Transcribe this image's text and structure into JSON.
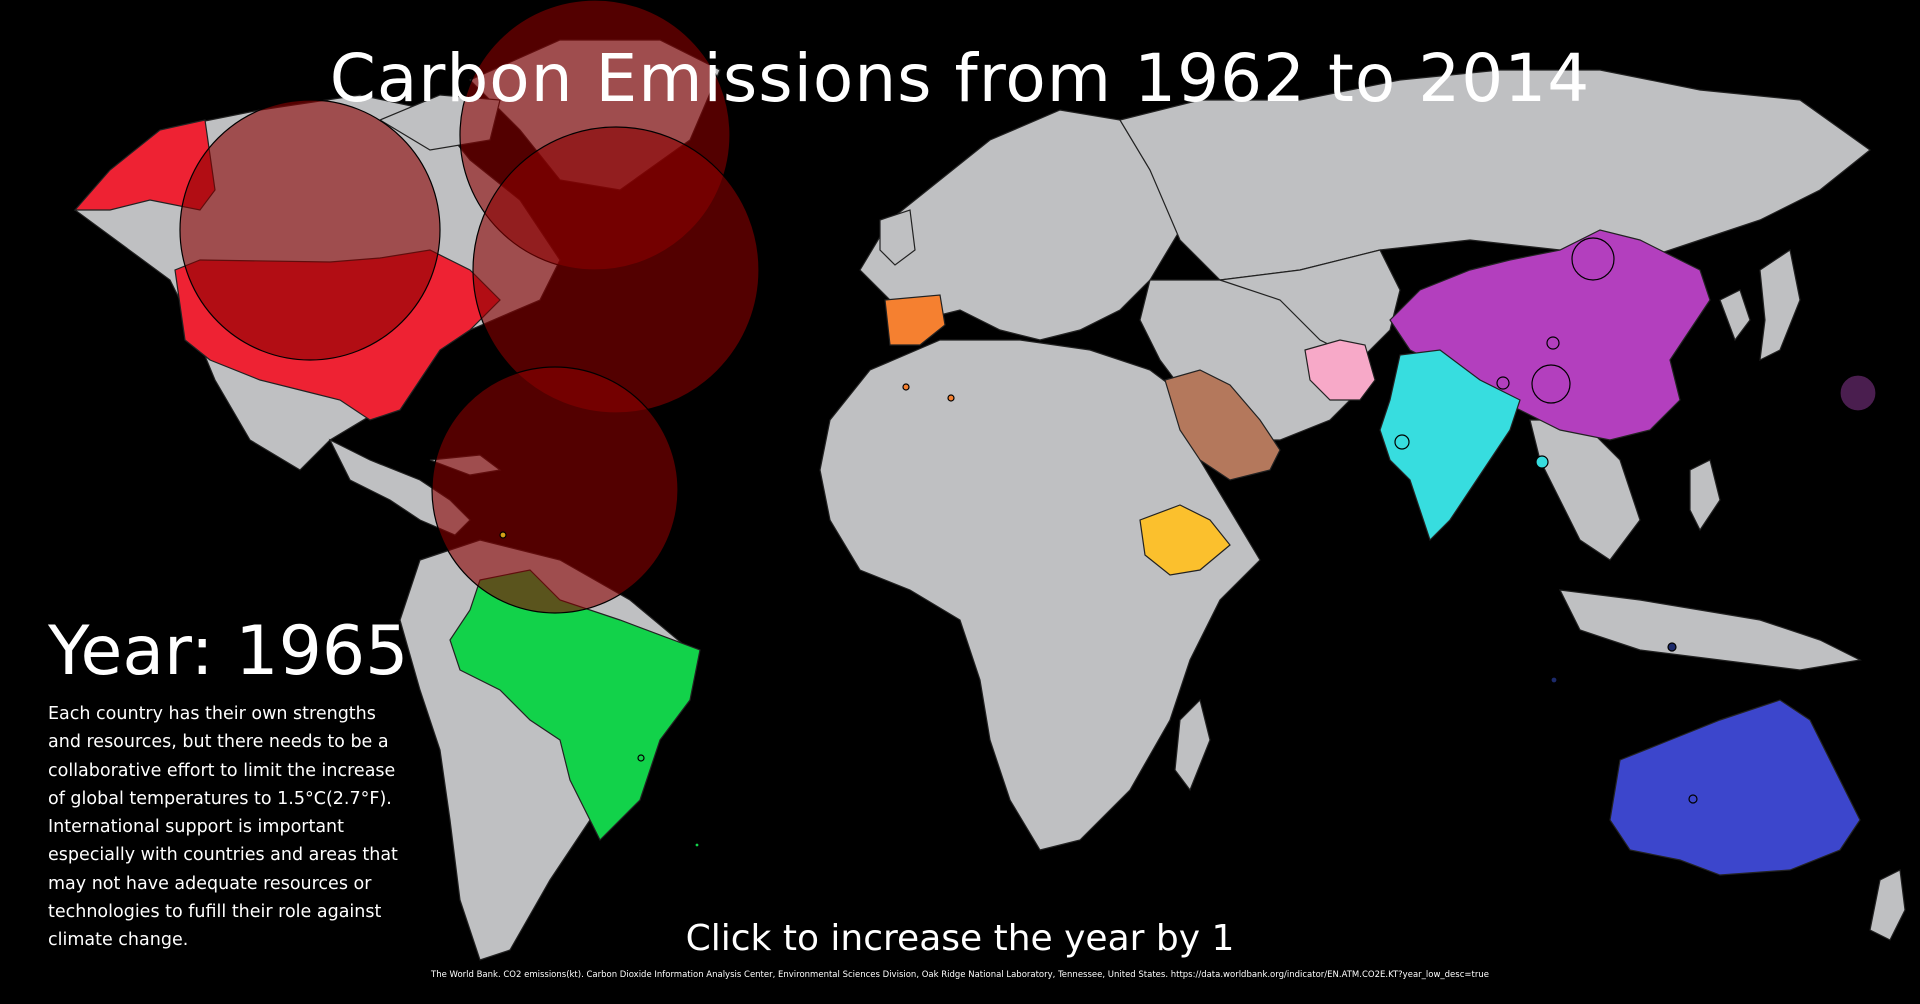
{
  "title": "Carbon Emissions from 1962 to 2014",
  "year_label": "Year: 1965",
  "description": "Each country has their own strengths and resources, but there needs to be a collaborative effort to limit the increase of global temperatures to 1.5°C(2.7°F). International support is important especially with countries and areas that may not have adequate resources or technologies to fufill their role against climate change.",
  "call_to_action": "Click to increase the year by 1",
  "citation": "The World Bank. CO2 emissions(kt). Carbon Dioxide Information Analysis Center, Environmental Sciences Division, Oak Ridge National Laboratory, Tennessee, United States. https://data.worldbank.org/indicator/EN.ATM.CO2E.KT?year_low_desc=true",
  "colors": {
    "background": "#000000",
    "land": "#bfc0c2",
    "usa": "#ee2233",
    "brazil": "#12d24a",
    "china": "#b33fbe",
    "india": "#37dddf",
    "australia": "#3c46cc",
    "saudi_arabia": "#b4785c",
    "ethiopia": "#fbc02d",
    "iran": "#f7a9c8",
    "portugal_spain": "#f58030",
    "emission_bubble": "#8b0000"
  },
  "highlighted_countries": [
    "United States",
    "Brazil",
    "China",
    "India",
    "Australia",
    "Saudi Arabia",
    "Ethiopia",
    "Iran",
    "Portugal"
  ]
}
